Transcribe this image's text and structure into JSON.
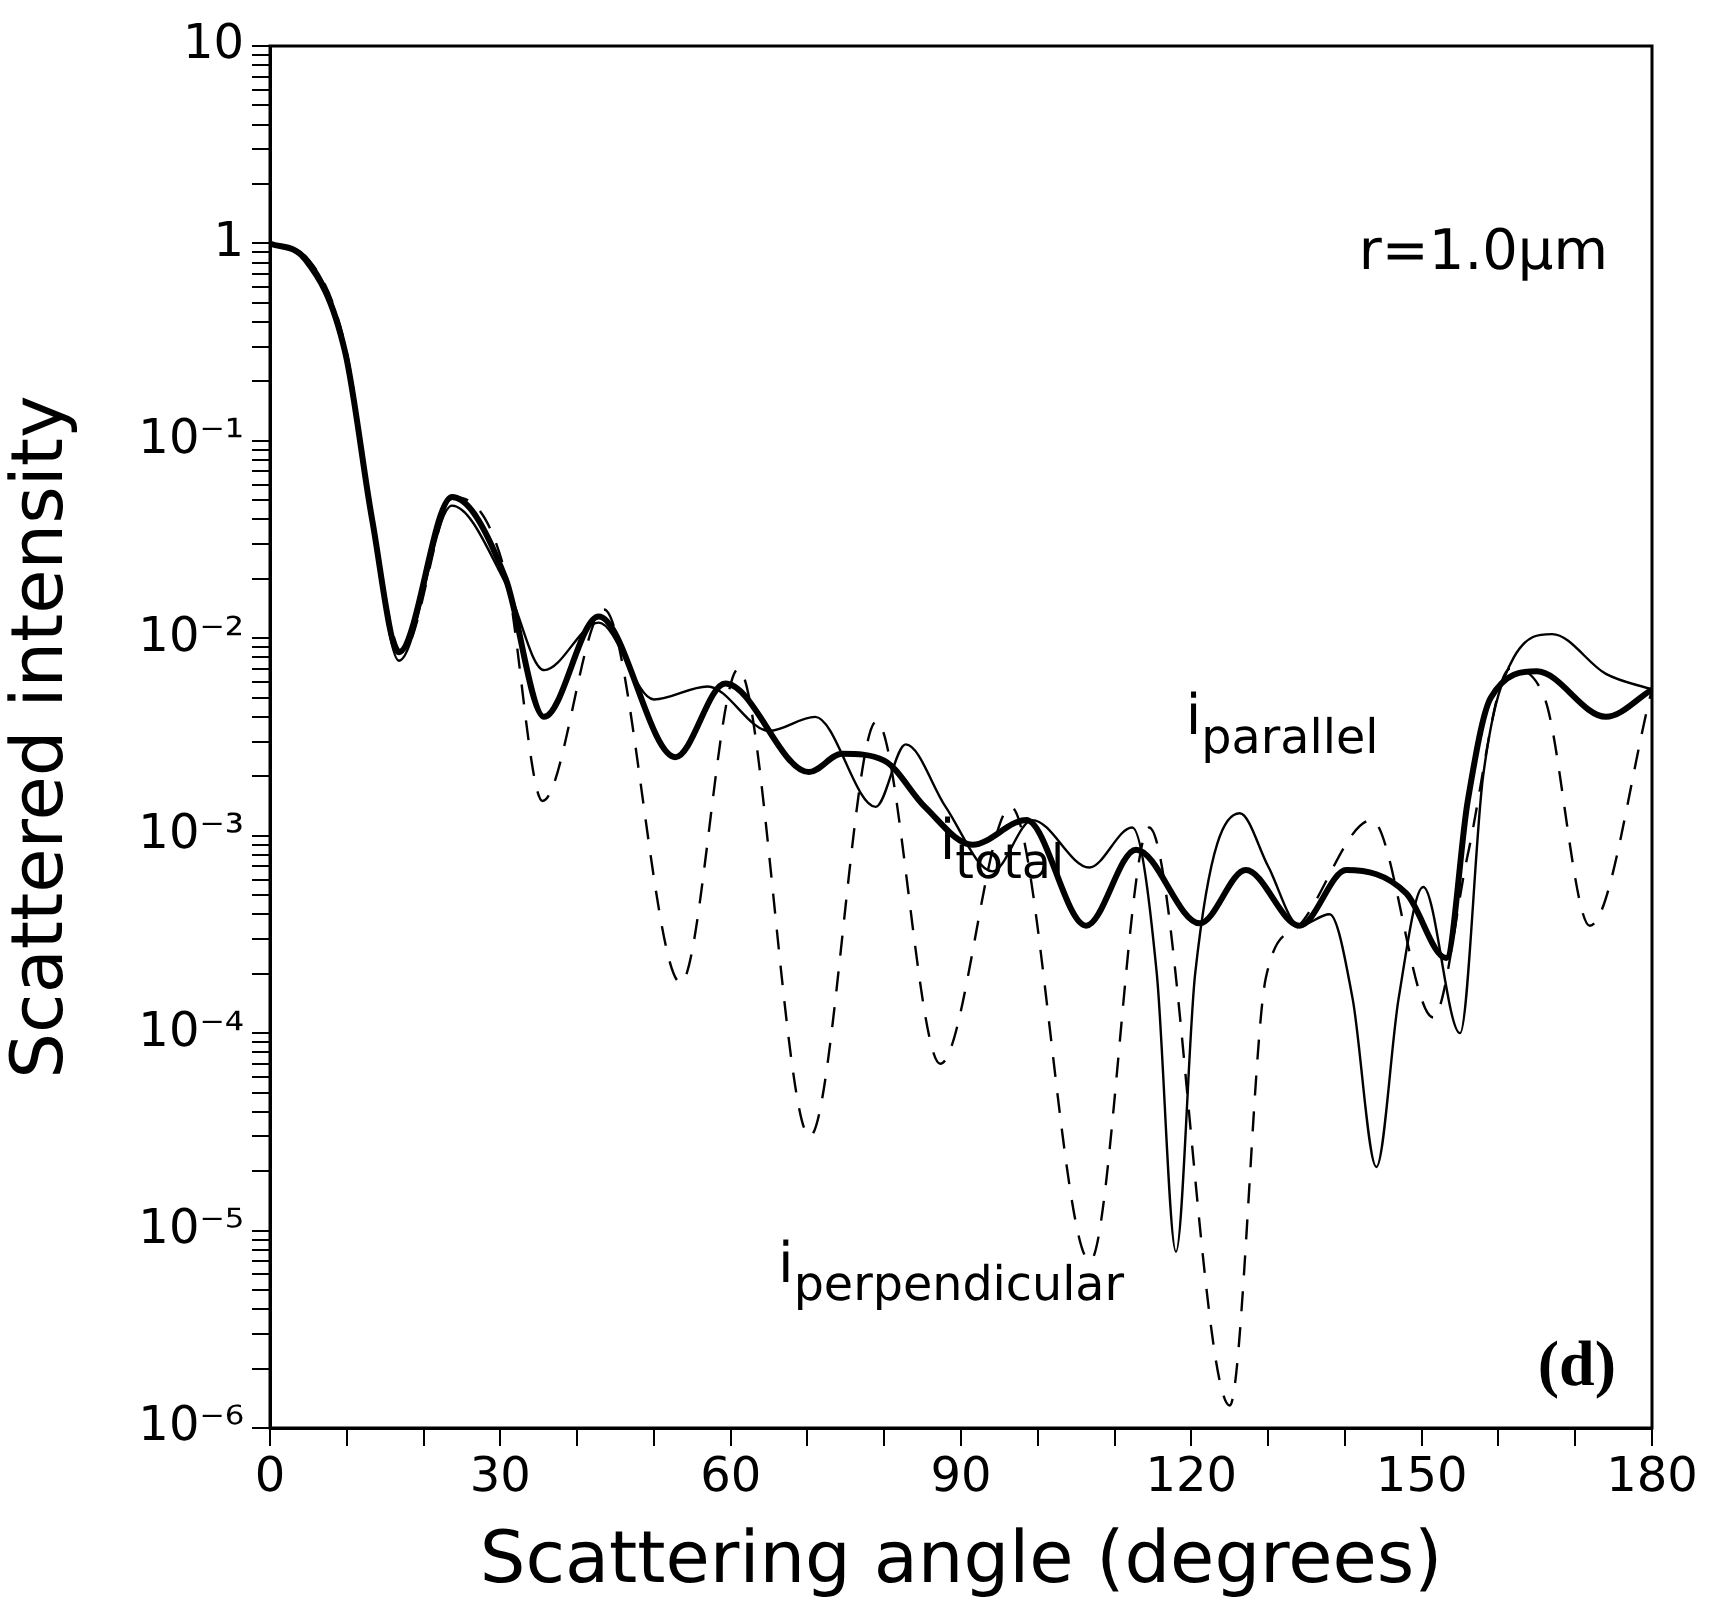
{
  "chart_data": {
    "type": "line",
    "xlabel": "Scattering angle (degrees)",
    "ylabel": "Scattered intensity",
    "log": "y",
    "grid": false,
    "legend": false,
    "marker": "none",
    "xlim": [
      0,
      180
    ],
    "ylim": [
      1e-06,
      10
    ],
    "xticks": [
      0,
      {
        "value": 10,
        "label": null
      },
      {
        "value": 20,
        "label": null
      },
      30,
      {
        "value": 40,
        "label": null
      },
      {
        "value": 50,
        "label": null
      },
      60,
      {
        "value": 70,
        "label": null
      },
      {
        "value": 80,
        "label": null
      },
      90,
      {
        "value": 100,
        "label": null
      },
      {
        "value": 110,
        "label": null
      },
      120,
      {
        "value": 130,
        "label": null
      },
      {
        "value": 140,
        "label": null
      },
      150,
      {
        "value": 160,
        "label": null
      },
      {
        "value": 170,
        "label": null
      },
      180
    ],
    "yticks": [
      {
        "value": 1e-06,
        "label": "10⁻⁶"
      },
      {
        "value": 2e-06,
        "label": null
      },
      {
        "value": 3e-06,
        "label": null
      },
      {
        "value": 4e-06,
        "label": null
      },
      {
        "value": 5e-06,
        "label": null
      },
      {
        "value": 6e-06,
        "label": null
      },
      {
        "value": 7e-06,
        "label": null
      },
      {
        "value": 8e-06,
        "label": null
      },
      {
        "value": 9e-06,
        "label": null
      },
      {
        "value": 1e-05,
        "label": "10⁻⁵"
      },
      {
        "value": 2e-05,
        "label": null
      },
      {
        "value": 3e-05,
        "label": null
      },
      {
        "value": 4e-05,
        "label": null
      },
      {
        "value": 5e-05,
        "label": null
      },
      {
        "value": 6e-05,
        "label": null
      },
      {
        "value": 7e-05,
        "label": null
      },
      {
        "value": 8e-05,
        "label": null
      },
      {
        "value": 9e-05,
        "label": null
      },
      {
        "value": 0.0001,
        "label": "10⁻⁴"
      },
      {
        "value": 0.0002,
        "label": null
      },
      {
        "value": 0.0003,
        "label": null
      },
      {
        "value": 0.0004,
        "label": null
      },
      {
        "value": 0.0005,
        "label": null
      },
      {
        "value": 0.0006,
        "label": null
      },
      {
        "value": 0.0007,
        "label": null
      },
      {
        "value": 0.0008,
        "label": null
      },
      {
        "value": 0.0009,
        "label": null
      },
      {
        "value": 0.001,
        "label": "10⁻³"
      },
      {
        "value": 0.002,
        "label": null
      },
      {
        "value": 0.003,
        "label": null
      },
      {
        "value": 0.004,
        "label": null
      },
      {
        "value": 0.005,
        "label": null
      },
      {
        "value": 0.006,
        "label": null
      },
      {
        "value": 0.007,
        "label": null
      },
      {
        "value": 0.008,
        "label": null
      },
      {
        "value": 0.009,
        "label": null
      },
      {
        "value": 0.01,
        "label": "10⁻²"
      },
      {
        "value": 0.02,
        "label": null
      },
      {
        "value": 0.03,
        "label": null
      },
      {
        "value": 0.04,
        "label": null
      },
      {
        "value": 0.05,
        "label": null
      },
      {
        "value": 0.06,
        "label": null
      },
      {
        "value": 0.07,
        "label": null
      },
      {
        "value": 0.08,
        "label": null
      },
      {
        "value": 0.09,
        "label": null
      },
      {
        "value": 0.1,
        "label": "10⁻¹"
      },
      {
        "value": 0.2,
        "label": null
      },
      {
        "value": 0.3,
        "label": null
      },
      {
        "value": 0.4,
        "label": null
      },
      {
        "value": 0.5,
        "label": null
      },
      {
        "value": 0.6,
        "label": null
      },
      {
        "value": 0.7,
        "label": null
      },
      {
        "value": 0.8,
        "label": null
      },
      {
        "value": 0.9,
        "label": null
      },
      1,
      {
        "value": 2,
        "label": null
      },
      {
        "value": 3,
        "label": null
      },
      {
        "value": 4,
        "label": null
      },
      {
        "value": 5,
        "label": null
      },
      {
        "value": 6,
        "label": null
      },
      {
        "value": 7,
        "label": null
      },
      {
        "value": 8,
        "label": null
      },
      {
        "value": 9,
        "label": null
      },
      10
    ],
    "series": [
      {
        "color": "#000000",
        "line_style": "solid",
        "x": [
          0,
          4.6,
          9.8,
          13.3,
          16.8,
          23.7,
          30.7,
          35.7,
          42.8,
          52.8,
          59.3,
          70.2,
          74.5,
          80,
          85.3,
          91.5,
          98.5,
          106.3,
          112.8,
          121.1,
          127.1,
          134.1,
          140.2,
          148,
          153.2,
          156,
          159,
          165,
          174,
          180
        ],
        "values": [
          1,
          0.83,
          0.28,
          0.04,
          0.0085,
          0.052,
          0.02,
          0.004,
          0.0129,
          0.0025,
          0.0059,
          0.0021,
          0.0026,
          0.0024,
          0.0014,
          0.0009,
          0.0012,
          0.00035,
          0.00085,
          0.00036,
          0.00067,
          0.00035,
          0.00067,
          0.00051,
          0.00024,
          0.0015,
          0.005,
          0.0068,
          0.004,
          0.0055
        ]
      },
      {
        "color": "#000000",
        "line_style": "solid",
        "x": [
          0,
          5,
          10,
          13.3,
          16.8,
          23.7,
          30.7,
          35.7,
          42.8,
          50,
          57,
          65,
          71,
          78.9,
          82.8,
          88,
          94.1,
          99.3,
          106.7,
          112.3,
          115.5,
          118,
          120.5,
          126.3,
          130,
          134.1,
          138,
          141,
          144.1,
          147,
          150.2,
          155,
          158,
          162,
          167,
          174,
          180
        ],
        "values": [
          1,
          0.83,
          0.27,
          0.04,
          0.0077,
          0.047,
          0.019,
          0.0069,
          0.012,
          0.0049,
          0.0057,
          0.0034,
          0.004,
          0.0014,
          0.0029,
          0.0014,
          0.00066,
          0.0012,
          0.00069,
          0.0011,
          0.0002,
          7.8e-06,
          0.0002,
          0.0013,
          0.0007,
          0.00035,
          0.0004,
          0.00015,
          2.1e-05,
          0.00015,
          0.00055,
          0.0001,
          0.002,
          0.008,
          0.0105,
          0.0066,
          0.0055
        ]
      },
      {
        "color": "#000000",
        "line_style": "dashed",
        "x": [
          0,
          5,
          10,
          13.3,
          17.2,
          24,
          30.7,
          35.5,
          43.5,
          53.5,
          61,
          70.3,
          79,
          87.3,
          96.5,
          106.8,
          114.5,
          125,
          129.7,
          134,
          143.5,
          151.5,
          156,
          161.5,
          166,
          171.9,
          180
        ],
        "values": [
          1,
          0.83,
          0.28,
          0.04,
          0.0085,
          0.052,
          0.021,
          0.0015,
          0.014,
          0.00018,
          0.007,
          3e-05,
          0.0038,
          7e-05,
          0.0014,
          7e-06,
          0.0011,
          1.3e-06,
          0.00019,
          0.00035,
          0.0012,
          0.00012,
          0.0008,
          0.007,
          0.005,
          0.00035,
          0.0055
        ]
      }
    ],
    "annotations": [
      "r=1.0μm",
      "(d)",
      "i$_{parallel}$",
      "i$_{total}$",
      "i$_{perpendicular}$"
    ]
  }
}
